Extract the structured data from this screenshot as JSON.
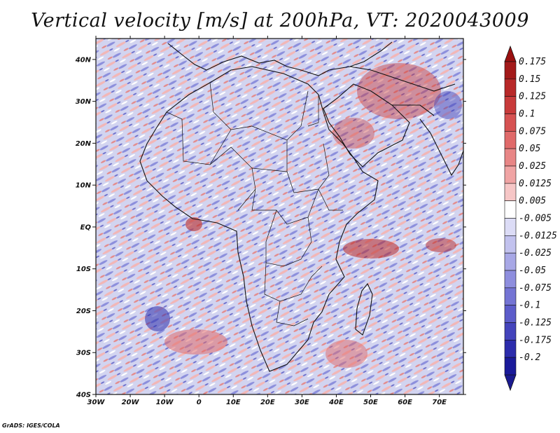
{
  "title": "Vertical velocity [m/s] at 200hPa, VT: 2020043009",
  "credit": "GrADS: IGES/COLA",
  "map": {
    "region": "Africa",
    "lat_labels": [
      "40N",
      "30N",
      "20N",
      "10N",
      "EQ",
      "10S",
      "20S",
      "30S",
      "40S"
    ],
    "lat_values": [
      40,
      30,
      20,
      10,
      0,
      -10,
      -20,
      -30,
      -40
    ],
    "lon_labels": [
      "30W",
      "20W",
      "10W",
      "0",
      "10E",
      "20E",
      "30E",
      "40E",
      "50E",
      "60E",
      "70E"
    ],
    "lon_values": [
      -30,
      -20,
      -10,
      0,
      10,
      20,
      30,
      40,
      50,
      60,
      70
    ],
    "lon_range": [
      -30,
      77
    ],
    "lat_range": [
      -40,
      45
    ]
  },
  "colorbar": {
    "labels": [
      "0.175",
      "0.15",
      "0.125",
      "0.1",
      "0.075",
      "0.05",
      "0.025",
      "0.0125",
      "0.005",
      "-0.005",
      "-0.0125",
      "-0.025",
      "-0.05",
      "-0.075",
      "-0.1",
      "-0.125",
      "-0.175",
      "-0.2"
    ],
    "colors": [
      "#a31a1a",
      "#b82828",
      "#c83a3a",
      "#d65252",
      "#e06a6a",
      "#e88686",
      "#f0a4a4",
      "#f6c6c6",
      "#ffffff",
      "#dcdcf6",
      "#c2c2ee",
      "#a8a8e6",
      "#8e8ede",
      "#7474d4",
      "#5c5cca",
      "#4444bc",
      "#2c2cac",
      "#1a1a9a"
    ],
    "top_color": "#9a1010",
    "bottom_color": "#1a1a90"
  }
}
